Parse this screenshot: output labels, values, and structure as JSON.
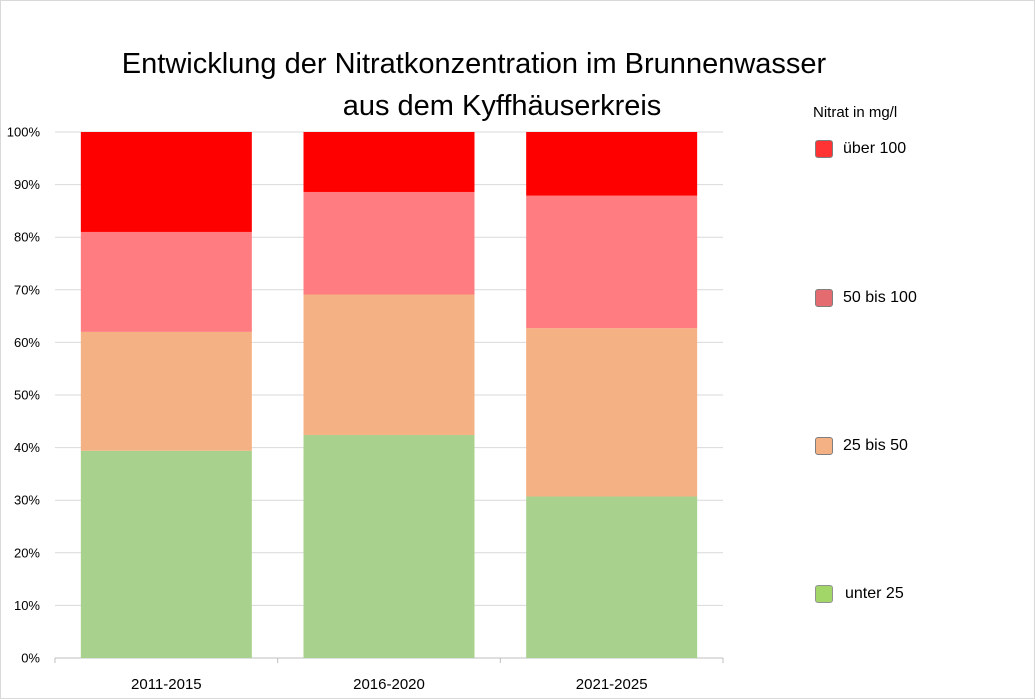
{
  "chart_data": {
    "type": "bar",
    "stacked": "percent",
    "title": "Entwicklung der Nitratkonzentration im Brunnenwasser aus dem Kyffhäuserkreis",
    "title_lines": [
      "Entwicklung der Nitratkonzentration im Brunnenwasser",
      "aus dem Kyffhäuserkreis"
    ],
    "categories": [
      "2011-2015",
      "2016-2020",
      "2021-2025"
    ],
    "series": [
      {
        "name": "unter 25",
        "color": "#a9d18e",
        "values": [
          39.4,
          42.4,
          30.7
        ]
      },
      {
        "name": "25 bis 50",
        "color": "#f4b183",
        "values": [
          22.6,
          26.7,
          32.0
        ]
      },
      {
        "name": "50 bis 100",
        "color": "#ff7c80",
        "values": [
          19.0,
          19.5,
          25.2
        ]
      },
      {
        "name": "über 100",
        "color": "#ff0000",
        "values": [
          19.0,
          11.4,
          12.1
        ]
      }
    ],
    "yticks": [
      "0%",
      "10%",
      "20%",
      "30%",
      "40%",
      "50%",
      "60%",
      "70%",
      "80%",
      "90%",
      "100%"
    ],
    "ylim": [
      0,
      100
    ],
    "xlabel": "",
    "ylabel": "",
    "grid": true,
    "legend": {
      "title": "Nitrat in mg/l",
      "position": "right"
    }
  }
}
